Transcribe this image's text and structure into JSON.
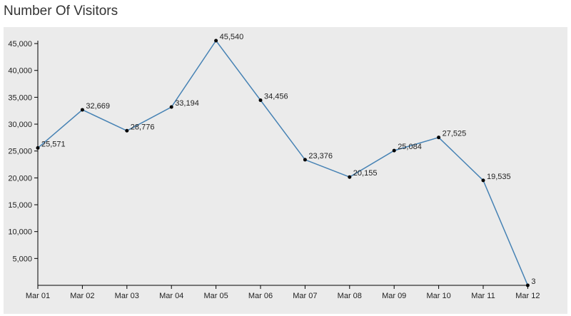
{
  "chart_data": {
    "type": "line",
    "title": "Number Of Visitors",
    "xlabel": "",
    "ylabel": "",
    "categories": [
      "Mar 01",
      "Mar 02",
      "Mar 03",
      "Mar 04",
      "Mar 05",
      "Mar 06",
      "Mar 07",
      "Mar 08",
      "Mar 09",
      "Mar 10",
      "Mar 11",
      "Mar 12"
    ],
    "values": [
      25571,
      32669,
      28776,
      33194,
      45540,
      34456,
      23376,
      20155,
      25084,
      27525,
      19535,
      3
    ],
    "data_labels": [
      "25,571",
      "32,669",
      "28,776",
      "33,194",
      "45,540",
      "34,456",
      "23,376",
      "20,155",
      "25,084",
      "27,525",
      "19,535",
      "3"
    ],
    "yticks": [
      5000,
      10000,
      15000,
      20000,
      25000,
      30000,
      35000,
      40000,
      45000
    ],
    "ytick_labels": [
      "5,000",
      "10,000",
      "15,000",
      "20,000",
      "25,000",
      "30,000",
      "35,000",
      "40,000",
      "45,000"
    ],
    "ylim": [
      0,
      45540
    ],
    "grid": false,
    "legend": "none",
    "colors": {
      "line": "#4682b4",
      "point": "#000000",
      "plot_bg": "#ebebeb"
    }
  }
}
